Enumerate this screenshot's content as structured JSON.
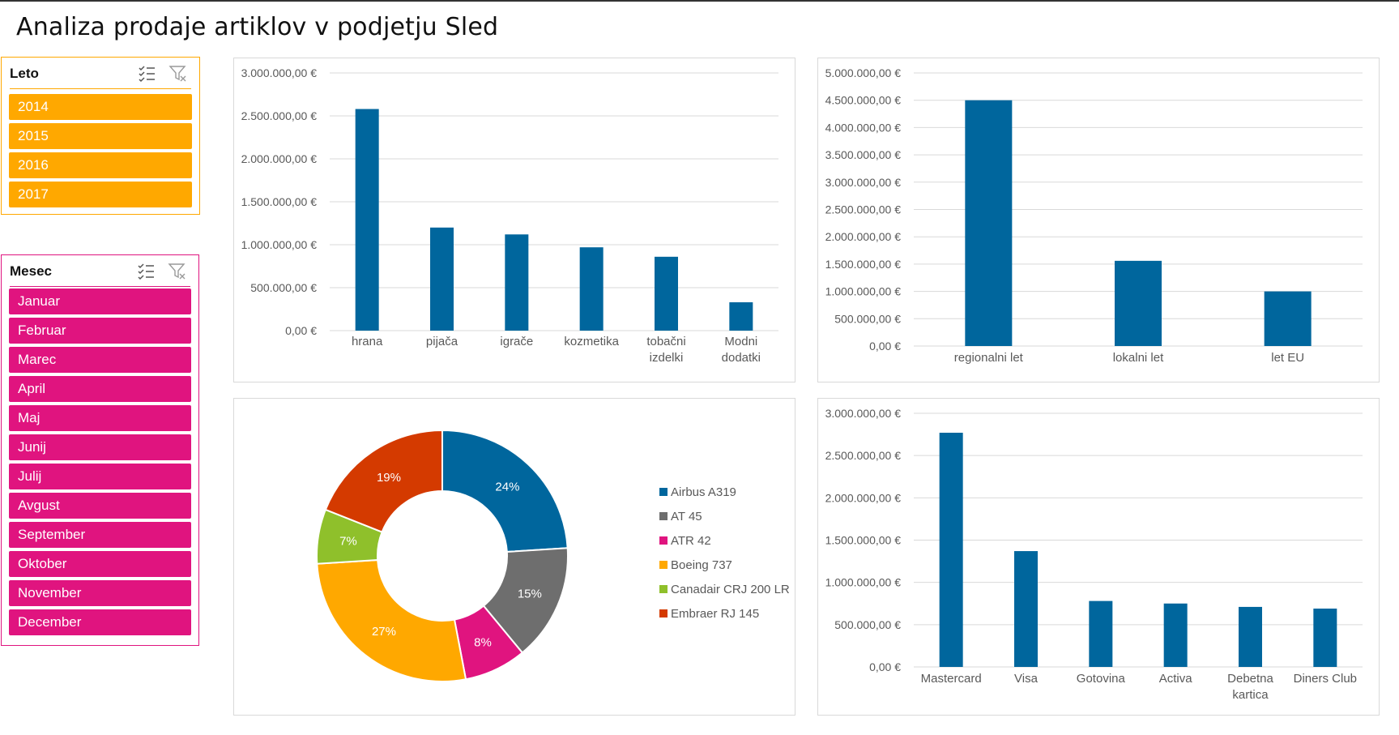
{
  "page": {
    "title": "Analiza prodaje artiklov v podjetju Sled"
  },
  "colors": {
    "bar": "#00669d",
    "leto_accent": "#ffa800",
    "mesec_accent": "#e0147f",
    "grid": "#d9d9d9",
    "axis_text": "#595959"
  },
  "slicers": {
    "leto": {
      "title": "Leto",
      "items": [
        "2014",
        "2015",
        "2016",
        "2017"
      ]
    },
    "mesec": {
      "title": "Mesec",
      "items": [
        "Januar",
        "Februar",
        "Marec",
        "April",
        "Maj",
        "Junij",
        "Julij",
        "Avgust",
        "September",
        "Oktober",
        "November",
        "December"
      ]
    }
  },
  "chart_data": [
    {
      "id": "chart-articles",
      "type": "bar",
      "title": "",
      "categories": [
        [
          "hrana"
        ],
        [
          "pijača"
        ],
        [
          "igrače"
        ],
        [
          "kozmetika"
        ],
        [
          "tobačni",
          "izdelki"
        ],
        [
          "Modni",
          "dodatki"
        ]
      ],
      "values": [
        2580000,
        1200000,
        1120000,
        970000,
        860000,
        330000
      ],
      "yticks": [
        "0,00 €",
        "500.000,00 €",
        "1.000.000,00 €",
        "1.500.000,00 €",
        "2.000.000,00 €",
        "2.500.000,00 €",
        "3.000.000,00 €"
      ],
      "ylim": [
        0,
        3000000
      ],
      "grid": true
    },
    {
      "id": "chart-flights",
      "type": "bar",
      "title": "",
      "categories": [
        [
          "regionalni let"
        ],
        [
          "lokalni let"
        ],
        [
          "let EU"
        ]
      ],
      "values": [
        4500000,
        1560000,
        1000000
      ],
      "yticks": [
        "0,00 €",
        "500.000,00 €",
        "1.000.000,00 €",
        "1.500.000,00 €",
        "2.000.000,00 €",
        "2.500.000,00 €",
        "3.000.000,00 €",
        "3.500.000,00 €",
        "4.000.000,00 €",
        "4.500.000,00 €",
        "5.000.000,00 €"
      ],
      "ylim": [
        0,
        5000000
      ],
      "grid": true
    },
    {
      "id": "chart-aircraft",
      "type": "pie",
      "variant": "doughnut",
      "title": "",
      "legend_position": "right",
      "slices": [
        {
          "label": "Airbus A319",
          "percent": 24,
          "value_label": "24%",
          "color": "#00669d"
        },
        {
          "label": "AT 45",
          "percent": 15,
          "value_label": "15%",
          "color": "#6e6e6e"
        },
        {
          "label": "ATR 42",
          "percent": 8,
          "value_label": "8%",
          "color": "#e0147f"
        },
        {
          "label": "Boeing 737",
          "percent": 27,
          "value_label": "27%",
          "color": "#ffa800"
        },
        {
          "label": "Canadair CRJ  200 LR",
          "percent": 7,
          "value_label": "7%",
          "color": "#8fc02b"
        },
        {
          "label": "Embraer RJ 145",
          "percent": 19,
          "value_label": "19%",
          "color": "#d43a00"
        }
      ]
    },
    {
      "id": "chart-payment",
      "type": "bar",
      "title": "",
      "categories": [
        [
          "Mastercard"
        ],
        [
          "Visa"
        ],
        [
          "Gotovina"
        ],
        [
          "Activa"
        ],
        [
          "Debetna",
          "kartica"
        ],
        [
          "Diners Club"
        ]
      ],
      "values": [
        2770000,
        1370000,
        780000,
        750000,
        710000,
        690000
      ],
      "yticks": [
        "0,00 €",
        "500.000,00 €",
        "1.000.000,00 €",
        "1.500.000,00 €",
        "2.000.000,00 €",
        "2.500.000,00 €",
        "3.000.000,00 €"
      ],
      "ylim": [
        0,
        3000000
      ],
      "grid": true
    }
  ]
}
